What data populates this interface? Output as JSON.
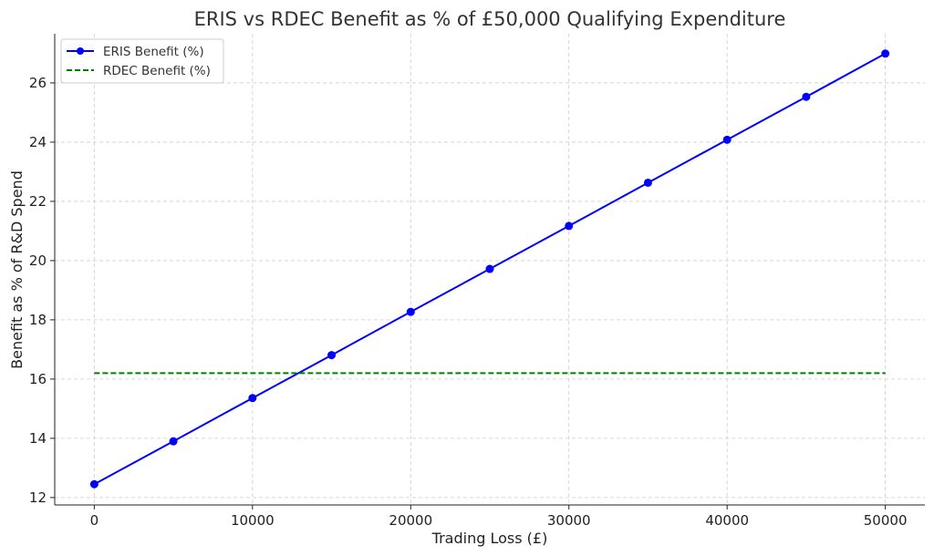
{
  "chart_data": {
    "type": "line",
    "title": "ERIS vs RDEC Benefit as % of £50,000 Qualifying Expenditure",
    "xlabel": "Trading Loss (£)",
    "ylabel": "Benefit as % of R&D Spend",
    "x": [
      0,
      5000,
      10000,
      15000,
      20000,
      25000,
      30000,
      35000,
      40000,
      45000,
      50000
    ],
    "series": [
      {
        "name": "ERIS Benefit (%)",
        "color": "#0000ff",
        "style": "solid-markers",
        "values": [
          12.45,
          13.9,
          15.36,
          16.81,
          18.27,
          19.72,
          21.17,
          22.63,
          24.08,
          25.53,
          26.99
        ]
      },
      {
        "name": "RDEC Benefit (%)",
        "color": "#008000",
        "style": "dashed",
        "values": [
          16.2,
          16.2,
          16.2,
          16.2,
          16.2,
          16.2,
          16.2,
          16.2,
          16.2,
          16.2,
          16.2
        ]
      }
    ],
    "xticks": [
      0,
      10000,
      20000,
      30000,
      40000,
      50000
    ],
    "xtick_labels": [
      "0",
      "10000",
      "20000",
      "30000",
      "40000",
      "50000"
    ],
    "yticks": [
      12,
      14,
      16,
      18,
      20,
      22,
      24,
      26
    ],
    "ytick_labels": [
      "12",
      "14",
      "16",
      "18",
      "20",
      "22",
      "24",
      "26"
    ],
    "xlim": [
      -2500,
      52500
    ],
    "ylim": [
      11.75,
      27.66
    ],
    "grid": true,
    "legend_position": "top-left"
  }
}
